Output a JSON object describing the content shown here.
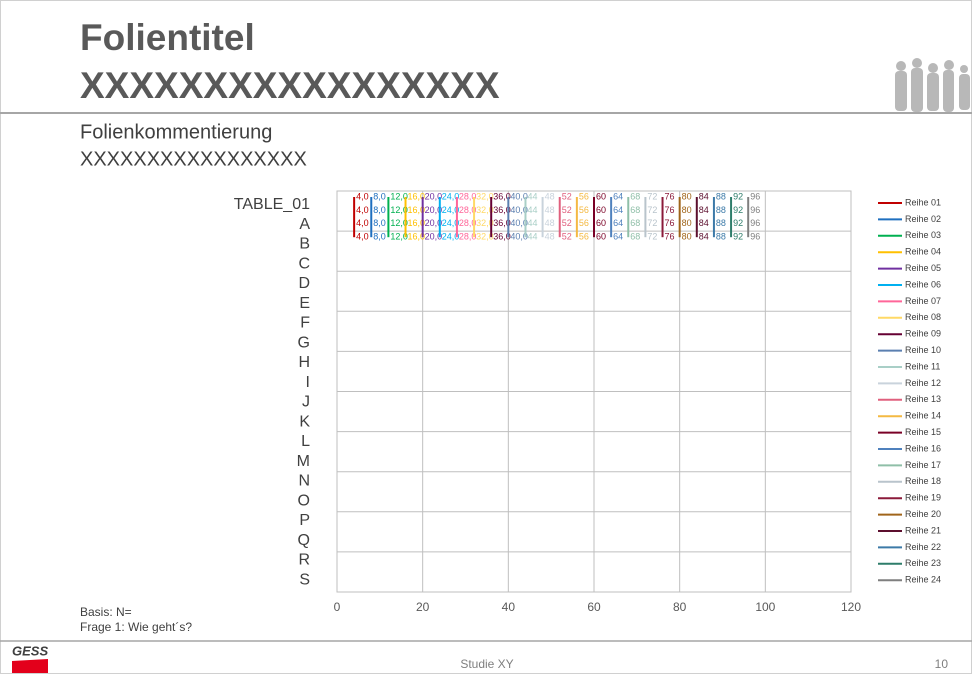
{
  "slide": {
    "title": "Folientitel",
    "title_line2": "XXXXXXXXXXXXXXXXX",
    "comment": "Folienkommentierung",
    "comment_line2": "XXXXXXXXXXXXXXXXX",
    "basis": "Basis: N=",
    "question": "Frage 1: Wie geht´s?",
    "footer": "Studie XY",
    "page": "10",
    "logo": "GESS"
  },
  "chart_data": {
    "type": "line",
    "orientation": "horizontal",
    "categories": [
      "TABLE_01",
      "A",
      "B",
      "C",
      "D",
      "E",
      "F",
      "G",
      "H",
      "I",
      "J",
      "K",
      "L",
      "M",
      "N",
      "O",
      "P",
      "Q",
      "R",
      "S"
    ],
    "xlim": [
      0,
      120
    ],
    "xticks": [
      0,
      20,
      40,
      60,
      80,
      100,
      120
    ],
    "grid": true,
    "legend": "right",
    "series": [
      {
        "name": "Reihe 01",
        "color": "#c00000",
        "values": [
          4,
          4,
          4,
          4,
          null,
          null,
          null,
          null,
          null,
          null,
          null,
          null,
          null,
          null,
          null,
          null,
          null,
          null,
          null,
          null
        ],
        "value_labels": [
          "4,0",
          "4,0",
          "4,0",
          "4,0",
          null,
          null,
          null,
          null,
          null,
          null,
          null,
          null,
          null,
          null,
          null,
          null,
          null,
          null,
          null,
          null
        ]
      },
      {
        "name": "Reihe 02",
        "color": "#1f6fbf",
        "values": [
          8,
          8,
          8,
          8,
          null,
          null,
          null,
          null,
          null,
          null,
          null,
          null,
          null,
          null,
          null,
          null,
          null,
          null,
          null,
          null
        ],
        "value_labels": [
          "8,0",
          "8,0",
          "8,0",
          "8,0",
          null,
          null,
          null,
          null,
          null,
          null,
          null,
          null,
          null,
          null,
          null,
          null,
          null,
          null,
          null,
          null
        ]
      },
      {
        "name": "Reihe 03",
        "color": "#00b050",
        "values": [
          12,
          12,
          12,
          12,
          null,
          null,
          null,
          null,
          null,
          null,
          null,
          null,
          null,
          null,
          null,
          null,
          null,
          null,
          null,
          null
        ],
        "value_labels": [
          "12,0",
          "12,0",
          "12,0",
          "12,0",
          null,
          null,
          null,
          null,
          null,
          null,
          null,
          null,
          null,
          null,
          null,
          null,
          null,
          null,
          null,
          null
        ]
      },
      {
        "name": "Reihe 04",
        "color": "#ffc000",
        "values": [
          16,
          16,
          16,
          16,
          null,
          null,
          null,
          null,
          null,
          null,
          null,
          null,
          null,
          null,
          null,
          null,
          null,
          null,
          null,
          null
        ],
        "value_labels": [
          "16,0",
          "16,0",
          "16,0",
          "16,0",
          null,
          null,
          null,
          null,
          null,
          null,
          null,
          null,
          null,
          null,
          null,
          null,
          null,
          null,
          null,
          null
        ]
      },
      {
        "name": "Reihe 05",
        "color": "#7030a0",
        "values": [
          20,
          20,
          20,
          20,
          null,
          null,
          null,
          null,
          null,
          null,
          null,
          null,
          null,
          null,
          null,
          null,
          null,
          null,
          null,
          null
        ],
        "value_labels": [
          "20,0",
          "20,0",
          "20,0",
          "20,0",
          null,
          null,
          null,
          null,
          null,
          null,
          null,
          null,
          null,
          null,
          null,
          null,
          null,
          null,
          null,
          null
        ]
      },
      {
        "name": "Reihe 06",
        "color": "#00b0f0",
        "values": [
          24,
          24,
          24,
          24,
          null,
          null,
          null,
          null,
          null,
          null,
          null,
          null,
          null,
          null,
          null,
          null,
          null,
          null,
          null,
          null
        ],
        "value_labels": [
          "24,0",
          "24,0",
          "24,0",
          "24,0",
          null,
          null,
          null,
          null,
          null,
          null,
          null,
          null,
          null,
          null,
          null,
          null,
          null,
          null,
          null,
          null
        ]
      },
      {
        "name": "Reihe 07",
        "color": "#ff6699",
        "values": [
          28,
          28,
          28,
          28,
          null,
          null,
          null,
          null,
          null,
          null,
          null,
          null,
          null,
          null,
          null,
          null,
          null,
          null,
          null,
          null
        ],
        "value_labels": [
          "28,0",
          "28,0",
          "28,0",
          "28,0",
          null,
          null,
          null,
          null,
          null,
          null,
          null,
          null,
          null,
          null,
          null,
          null,
          null,
          null,
          null,
          null
        ]
      },
      {
        "name": "Reihe 08",
        "color": "#ffd966",
        "values": [
          32,
          32,
          32,
          32,
          null,
          null,
          null,
          null,
          null,
          null,
          null,
          null,
          null,
          null,
          null,
          null,
          null,
          null,
          null,
          null
        ],
        "value_labels": [
          "32,0",
          "32,0",
          "32,0",
          "32,0",
          null,
          null,
          null,
          null,
          null,
          null,
          null,
          null,
          null,
          null,
          null,
          null,
          null,
          null,
          null,
          null
        ]
      },
      {
        "name": "Reihe 09",
        "color": "#660033",
        "values": [
          36,
          36,
          36,
          36,
          null,
          null,
          null,
          null,
          null,
          null,
          null,
          null,
          null,
          null,
          null,
          null,
          null,
          null,
          null,
          null
        ],
        "value_labels": [
          "36,0",
          "36,0",
          "36,0",
          "36,0",
          null,
          null,
          null,
          null,
          null,
          null,
          null,
          null,
          null,
          null,
          null,
          null,
          null,
          null,
          null,
          null
        ]
      },
      {
        "name": "Reihe 10",
        "color": "#5b7fb0",
        "values": [
          40,
          40,
          40,
          40,
          null,
          null,
          null,
          null,
          null,
          null,
          null,
          null,
          null,
          null,
          null,
          null,
          null,
          null,
          null,
          null
        ],
        "value_labels": [
          "40,0",
          "40,0",
          "40,0",
          "40,0",
          null,
          null,
          null,
          null,
          null,
          null,
          null,
          null,
          null,
          null,
          null,
          null,
          null,
          null,
          null,
          null
        ]
      },
      {
        "name": "Reihe 11",
        "color": "#a9cfc7",
        "values": [
          44,
          44,
          44,
          44,
          null,
          null,
          null,
          null,
          null,
          null,
          null,
          null,
          null,
          null,
          null,
          null,
          null,
          null,
          null,
          null
        ]
      },
      {
        "name": "Reihe 12",
        "color": "#c9d3dc",
        "values": [
          48,
          48,
          48,
          48,
          null,
          null,
          null,
          null,
          null,
          null,
          null,
          null,
          null,
          null,
          null,
          null,
          null,
          null,
          null,
          null
        ]
      },
      {
        "name": "Reihe 13",
        "color": "#e0607e",
        "values": [
          52,
          52,
          52,
          52,
          null,
          null,
          null,
          null,
          null,
          null,
          null,
          null,
          null,
          null,
          null,
          null,
          null,
          null,
          null,
          null
        ]
      },
      {
        "name": "Reihe 14",
        "color": "#f4b942",
        "values": [
          56,
          56,
          56,
          56,
          null,
          null,
          null,
          null,
          null,
          null,
          null,
          null,
          null,
          null,
          null,
          null,
          null,
          null,
          null,
          null
        ]
      },
      {
        "name": "Reihe 15",
        "color": "#7a0026",
        "values": [
          60,
          60,
          60,
          60,
          null,
          null,
          null,
          null,
          null,
          null,
          null,
          null,
          null,
          null,
          null,
          null,
          null,
          null,
          null,
          null
        ]
      },
      {
        "name": "Reihe 16",
        "color": "#4f81bd",
        "values": [
          64,
          64,
          64,
          64,
          null,
          null,
          null,
          null,
          null,
          null,
          null,
          null,
          null,
          null,
          null,
          null,
          null,
          null,
          null,
          null
        ]
      },
      {
        "name": "Reihe 17",
        "color": "#8fbfa8",
        "values": [
          68,
          68,
          68,
          68,
          null,
          null,
          null,
          null,
          null,
          null,
          null,
          null,
          null,
          null,
          null,
          null,
          null,
          null,
          null,
          null
        ]
      },
      {
        "name": "Reihe 18",
        "color": "#b9c4cc",
        "values": [
          72,
          72,
          72,
          72,
          null,
          null,
          null,
          null,
          null,
          null,
          null,
          null,
          null,
          null,
          null,
          null,
          null,
          null,
          null,
          null
        ]
      },
      {
        "name": "Reihe 19",
        "color": "#8b1a3a",
        "values": [
          76,
          76,
          76,
          76,
          null,
          null,
          null,
          null,
          null,
          null,
          null,
          null,
          null,
          null,
          null,
          null,
          null,
          null,
          null,
          null
        ]
      },
      {
        "name": "Reihe 20",
        "color": "#a0651a",
        "values": [
          80,
          80,
          80,
          80,
          null,
          null,
          null,
          null,
          null,
          null,
          null,
          null,
          null,
          null,
          null,
          null,
          null,
          null,
          null,
          null
        ]
      },
      {
        "name": "Reihe 21",
        "color": "#5c0f2e",
        "values": [
          84,
          84,
          84,
          84,
          null,
          null,
          null,
          null,
          null,
          null,
          null,
          null,
          null,
          null,
          null,
          null,
          null,
          null,
          null,
          null
        ]
      },
      {
        "name": "Reihe 22",
        "color": "#3c7aa8",
        "values": [
          88,
          88,
          88,
          88,
          null,
          null,
          null,
          null,
          null,
          null,
          null,
          null,
          null,
          null,
          null,
          null,
          null,
          null,
          null,
          null
        ]
      },
      {
        "name": "Reihe 23",
        "color": "#2e7d6a",
        "values": [
          92,
          92,
          92,
          92,
          null,
          null,
          null,
          null,
          null,
          null,
          null,
          null,
          null,
          null,
          null,
          null,
          null,
          null,
          null,
          null
        ]
      },
      {
        "name": "Reihe 24",
        "color": "#7f7f7f",
        "values": [
          96,
          96,
          96,
          96,
          null,
          null,
          null,
          null,
          null,
          null,
          null,
          null,
          null,
          null,
          null,
          null,
          null,
          null,
          null,
          null
        ]
      }
    ]
  }
}
